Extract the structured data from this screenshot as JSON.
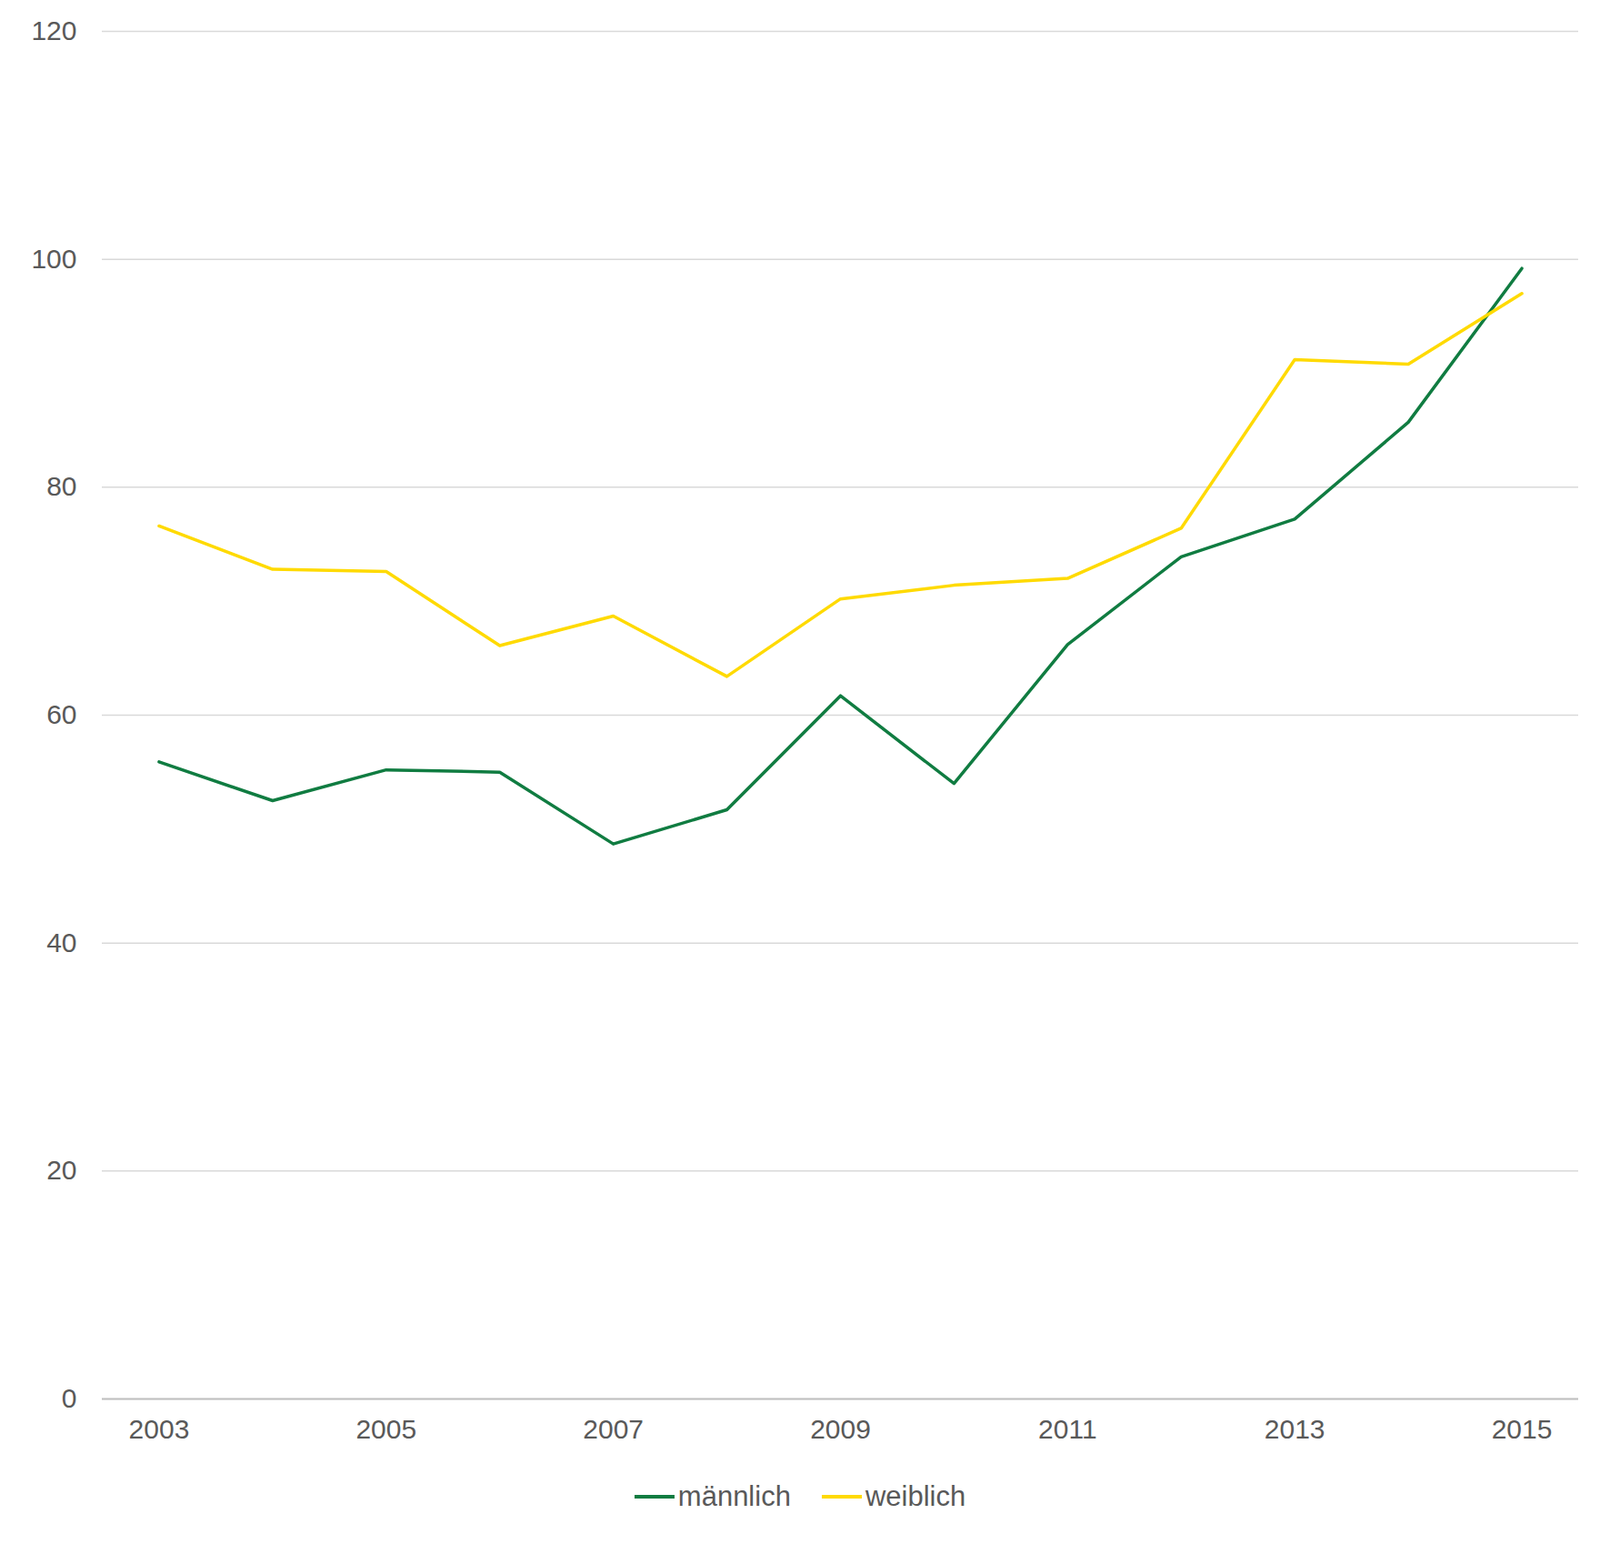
{
  "chart_data": {
    "type": "line",
    "x": [
      2003,
      2004,
      2005,
      2006,
      2007,
      2008,
      2009,
      2010,
      2011,
      2012,
      2013,
      2014,
      2015
    ],
    "series": [
      {
        "name": "männlich",
        "color": "#107C41",
        "values": [
          55.9,
          52.5,
          55.2,
          55.0,
          48.7,
          51.7,
          61.7,
          54.0,
          66.2,
          73.9,
          77.2,
          85.7,
          99.2
        ]
      },
      {
        "name": "weiblich",
        "color": "#FFDA00",
        "values": [
          76.6,
          72.8,
          72.6,
          66.1,
          68.7,
          63.4,
          70.2,
          71.4,
          72.0,
          76.4,
          91.2,
          90.8,
          97.0
        ]
      }
    ],
    "xlim": [
      2002.5,
      2015.5
    ],
    "xticks": [
      2003,
      2005,
      2007,
      2009,
      2011,
      2013,
      2015
    ],
    "ylim": [
      0,
      120
    ],
    "yticks": [
      0,
      20,
      40,
      60,
      80,
      100,
      120
    ],
    "grid": true,
    "legend": "bottom"
  }
}
